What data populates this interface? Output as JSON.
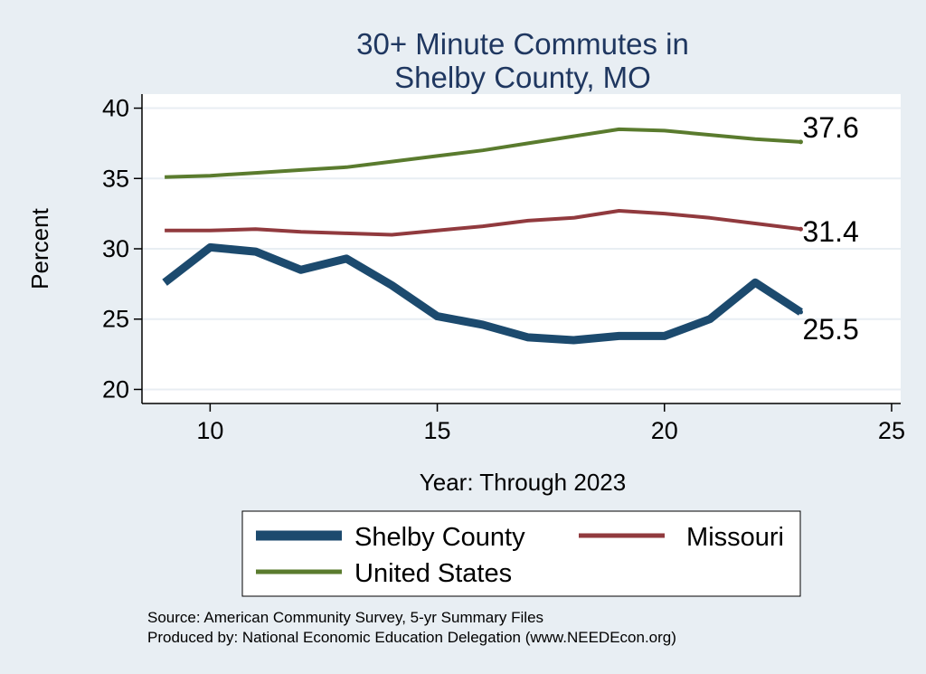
{
  "chart_data": {
    "type": "line",
    "title": [
      "30+ Minute Commutes in",
      "Shelby County, MO"
    ],
    "xlabel": "Year: Through 2023",
    "ylabel": "Percent",
    "xlim": [
      8.5,
      25.2
    ],
    "ylim": [
      19.0,
      41.0
    ],
    "xticks": [
      10,
      15,
      20,
      25
    ],
    "yticks": [
      20,
      25,
      30,
      35,
      40
    ],
    "grid": true,
    "legend_position": "bottom",
    "x": [
      9,
      10,
      11,
      12,
      13,
      14,
      15,
      16,
      17,
      18,
      19,
      20,
      21,
      22,
      23
    ],
    "series": [
      {
        "name": "Shelby County",
        "color": "#1c4a6e",
        "values": [
          27.6,
          30.1,
          29.8,
          28.5,
          29.3,
          27.4,
          25.2,
          24.6,
          23.7,
          23.5,
          23.8,
          23.8,
          25.0,
          27.6,
          25.5
        ],
        "end_label": "25.5"
      },
      {
        "name": "Missouri",
        "color": "#913a3e",
        "values": [
          31.3,
          31.3,
          31.4,
          31.2,
          31.1,
          31.0,
          31.3,
          31.6,
          32.0,
          32.2,
          32.7,
          32.5,
          32.2,
          31.8,
          31.4
        ],
        "end_label": "31.4"
      },
      {
        "name": "United States",
        "color": "#5a7b2e",
        "values": [
          35.1,
          35.2,
          35.4,
          35.6,
          35.8,
          36.2,
          36.6,
          37.0,
          37.5,
          38.0,
          38.5,
          38.4,
          38.1,
          37.8,
          37.6
        ],
        "end_label": "37.6"
      }
    ],
    "source": "Source: American Community Survey, 5-yr Summary Files",
    "produced_by": "Produced by: National Economic Education Delegation (www.NEEDEcon.org)"
  }
}
